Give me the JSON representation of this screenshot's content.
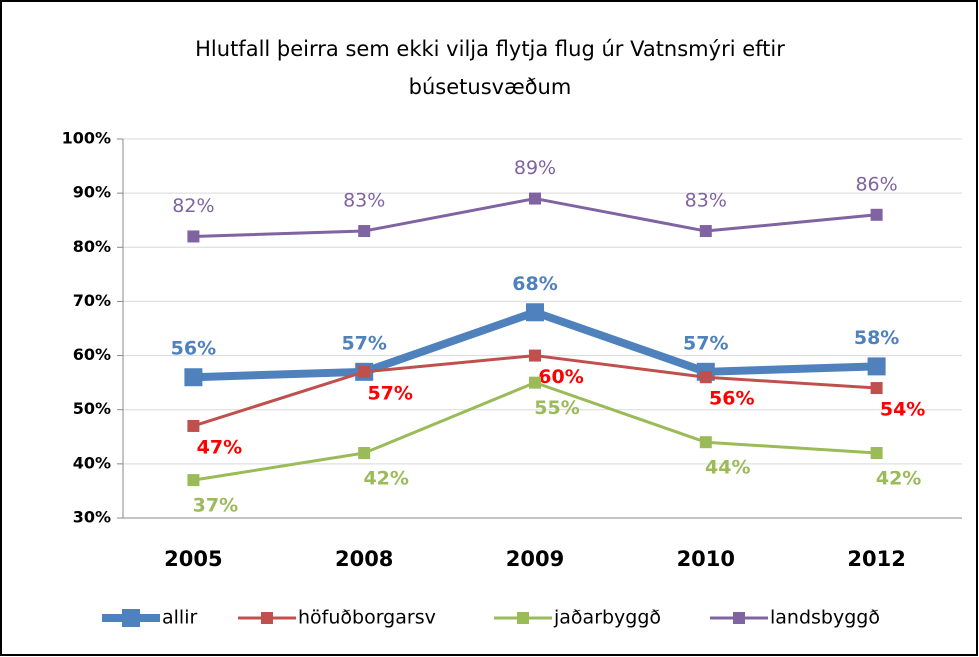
{
  "chart_data": {
    "type": "line",
    "title": [
      "Hlutfall þeirra sem ekki vilja flytja flug úr Vatnsmýri eftir",
      "búsetusvæðum"
    ],
    "categories": [
      "2005",
      "2008",
      "2009",
      "2010",
      "2012"
    ],
    "series": [
      {
        "name": "allir",
        "color": "#4f81bd",
        "values": [
          56,
          57,
          68,
          57,
          58
        ],
        "value_labels": [
          "56%",
          "57%",
          "68%",
          "57%",
          "58%"
        ]
      },
      {
        "name": "höfuðborgarsv",
        "color": "#c0504d",
        "values": [
          47,
          57,
          60,
          56,
          54
        ],
        "value_labels": [
          "47%",
          "57%",
          "60%",
          "56%",
          "54%"
        ]
      },
      {
        "name": "jaðarbyggð",
        "color": "#9bbb59",
        "values": [
          37,
          42,
          55,
          44,
          42
        ],
        "value_labels": [
          "37%",
          "42%",
          "55%",
          "44%",
          "42%"
        ]
      },
      {
        "name": "landsbyggð",
        "color": "#8064a2",
        "values": [
          82,
          83,
          89,
          83,
          86
        ],
        "value_labels": [
          "82%",
          "83%",
          "89%",
          "83%",
          "86%"
        ]
      }
    ],
    "ylim": [
      30,
      100
    ],
    "yticks": [
      {
        "value": 30,
        "label": "30%"
      },
      {
        "value": 40,
        "label": "40%"
      },
      {
        "value": 50,
        "label": "50%"
      },
      {
        "value": 60,
        "label": "60%"
      },
      {
        "value": 70,
        "label": "70%"
      },
      {
        "value": 80,
        "label": "80%"
      },
      {
        "value": 90,
        "label": "90%"
      },
      {
        "value": 100,
        "label": "100%"
      }
    ],
    "grid": true,
    "legend": "bottom"
  }
}
